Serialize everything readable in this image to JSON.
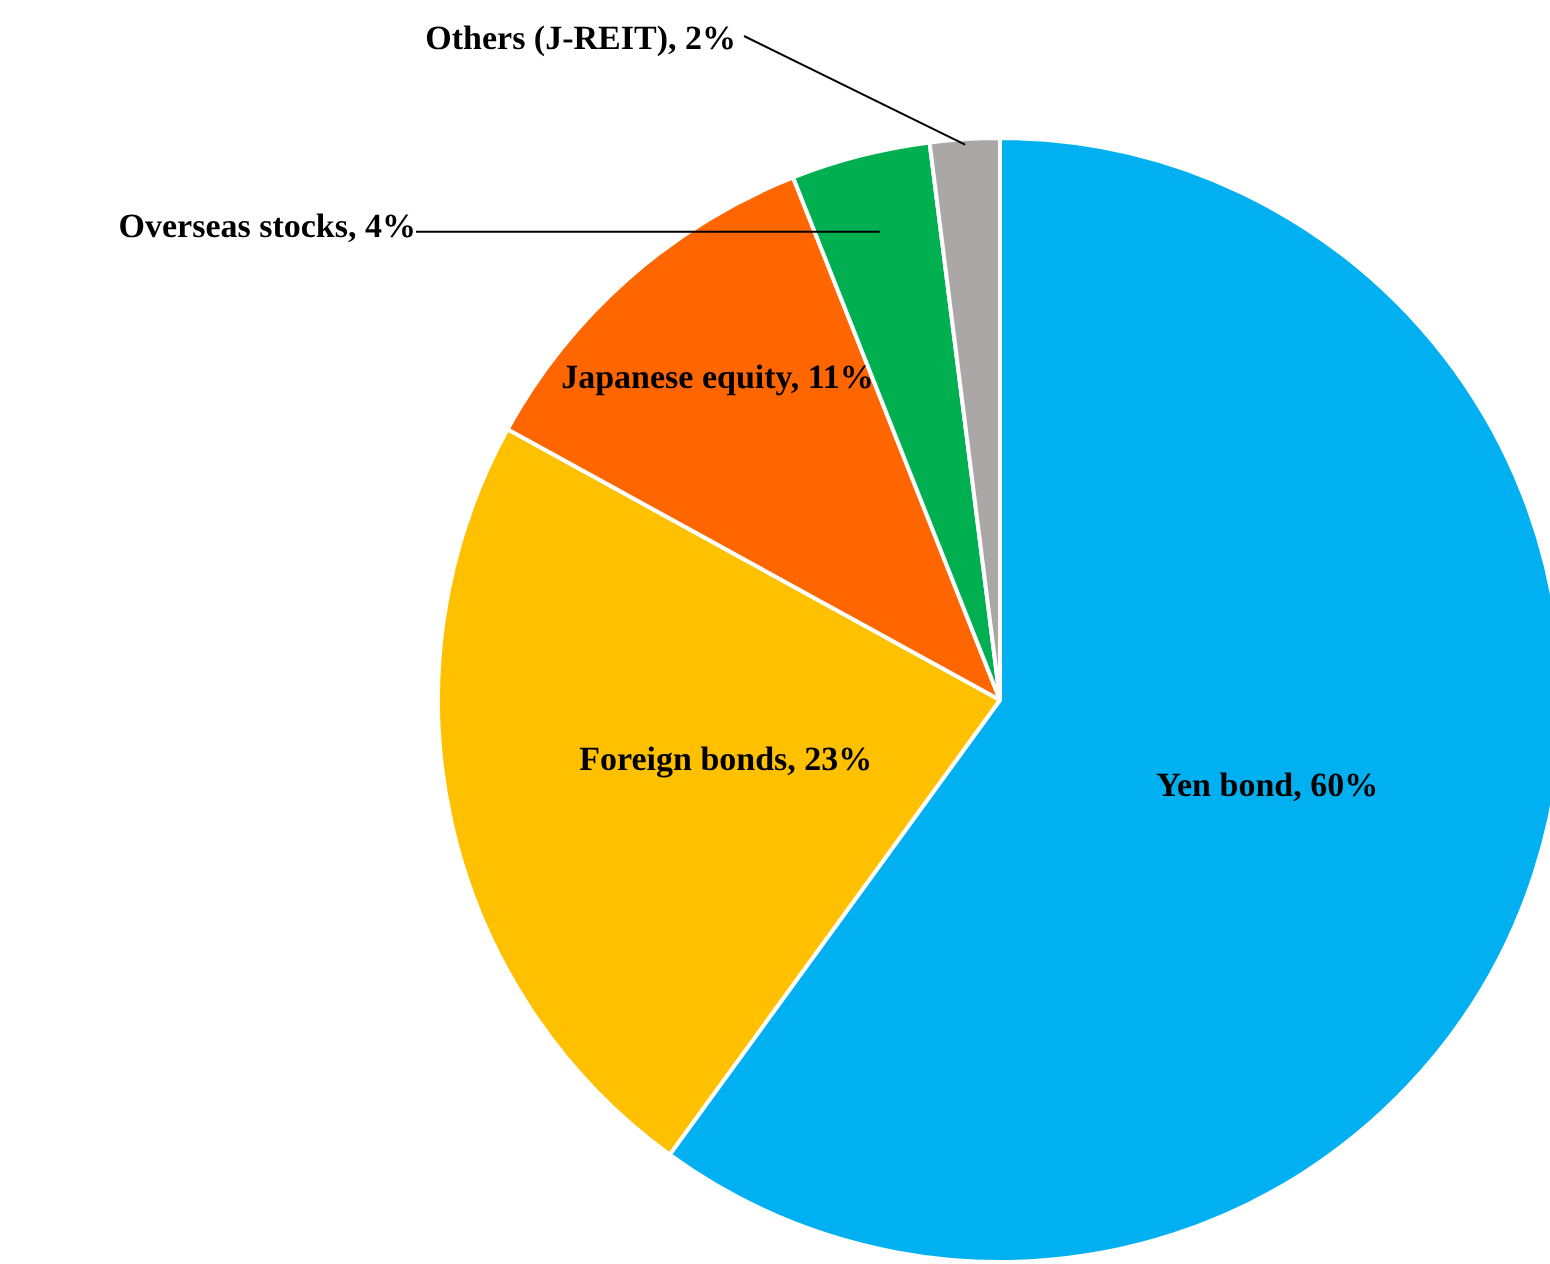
{
  "chart_data": {
    "type": "pie",
    "categories": [
      "Yen bond",
      "Foreign bonds",
      "Japanese equity",
      "Overseas stocks",
      "Others (J-REIT)"
    ],
    "values": [
      60,
      23,
      11,
      4,
      2
    ],
    "value_labels": [
      "60%",
      "23%",
      "11%",
      "4%",
      "2%"
    ],
    "colors": [
      "#00b0f0",
      "#ffc000",
      "#ff6600",
      "#00b050",
      "#aba7a7"
    ],
    "legend": false
  }
}
